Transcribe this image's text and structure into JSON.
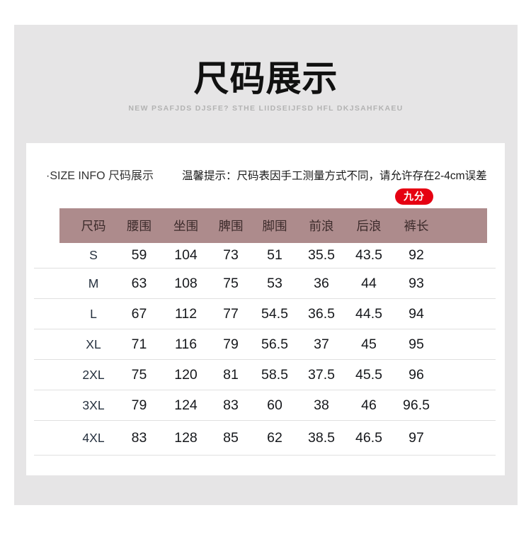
{
  "banner": {
    "title": "尺码展示",
    "subtitle": "NEW PSAFJDS DJSFE? STHE LIIDSEIJFSD HFL DKJSAHFKAEU"
  },
  "info_bar": {
    "section_label": "·SIZE INFO 尺码展示",
    "tip": "温馨提示：尺码表因手工测量方式不同，请允许存在2-4cm误差",
    "badge": "九分"
  },
  "colors": {
    "card_bg": "#e6e5e6",
    "panel_bg": "#ffffff",
    "header_bg": "#ad8b8c",
    "header_text": "#3c2b2b",
    "badge_bg": "#e60012",
    "badge_text": "#ffffff",
    "title_text": "#111111",
    "subtitle_text": "#b3b3b3",
    "row_line": "#e0e0e0"
  },
  "size_table": {
    "headers": [
      "尺码",
      "腰围",
      "坐围",
      "脾围",
      "脚围",
      "前浪",
      "后浪",
      "裤长"
    ],
    "rows": [
      {
        "size": "S",
        "values": [
          "59",
          "104",
          "73",
          "51",
          "35.5",
          "43.5",
          "92"
        ]
      },
      {
        "size": "M",
        "values": [
          "63",
          "108",
          "75",
          "53",
          "36",
          "44",
          "93"
        ]
      },
      {
        "size": "L",
        "values": [
          "67",
          "112",
          "77",
          "54.5",
          "36.5",
          "44.5",
          "94"
        ]
      },
      {
        "size": "XL",
        "values": [
          "71",
          "116",
          "79",
          "56.5",
          "37",
          "45",
          "95"
        ]
      },
      {
        "size": "2XL",
        "values": [
          "75",
          "120",
          "81",
          "58.5",
          "37.5",
          "45.5",
          "96"
        ]
      },
      {
        "size": "3XL",
        "values": [
          "79",
          "124",
          "83",
          "60",
          "38",
          "46",
          "96.5"
        ]
      },
      {
        "size": "4XL",
        "values": [
          "83",
          "128",
          "85",
          "62",
          "38.5",
          "46.5",
          "97"
        ]
      }
    ]
  }
}
